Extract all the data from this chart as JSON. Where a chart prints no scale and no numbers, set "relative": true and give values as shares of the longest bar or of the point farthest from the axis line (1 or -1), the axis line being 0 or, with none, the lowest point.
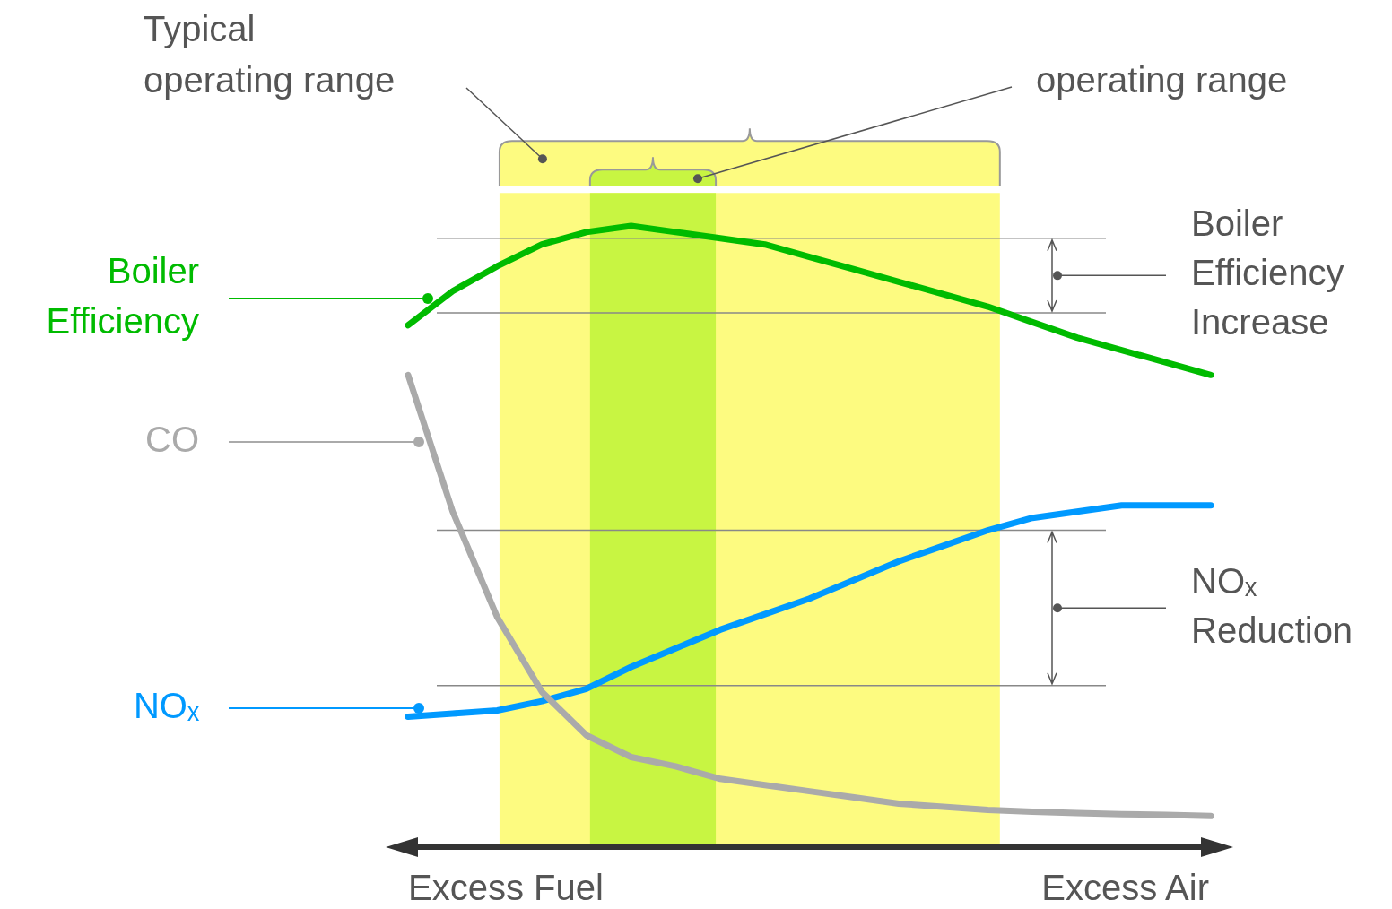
{
  "chart_data": {
    "type": "line",
    "relative": true,
    "categories": [
      null,
      null,
      null,
      null,
      null,
      null,
      null,
      null,
      null,
      null,
      null,
      null,
      null,
      null,
      null,
      null,
      null,
      null,
      null
    ],
    "tick_labels": false,
    "legend": false,
    "marker": "none",
    "line_style": "solid",
    "series": [
      {
        "name": "Boiler Efficiency",
        "color": "#00bb00",
        "values": [
          0.84,
          0.895,
          0.935,
          0.97,
          0.99,
          1,
          0.99,
          0.98,
          0.97,
          0.95,
          0.93,
          0.91,
          0.89,
          0.87,
          0.845,
          0.82,
          0.8,
          0.78,
          0.76
        ]
      },
      {
        "name": "CO",
        "color": "#aaaaaa",
        "values": [
          0.76,
          0.54,
          0.37,
          0.25,
          0.18,
          0.145,
          0.13,
          0.11,
          0.1,
          0.09,
          0.08,
          0.07,
          0.065,
          0.06,
          0.057,
          0.055,
          0.053,
          0.052,
          0.05
        ]
      },
      {
        "name": "NOₓ",
        "color": "#0099ff",
        "values": [
          0.21,
          0.215,
          0.22,
          0.235,
          0.255,
          0.29,
          0.32,
          0.35,
          0.375,
          0.4,
          0.43,
          0.46,
          0.485,
          0.51,
          0.53,
          0.54,
          0.55,
          0.55,
          0.55
        ]
      }
    ],
    "ref_lines": [
      {
        "axis": "y",
        "value": 0.98,
        "color": "#888888"
      },
      {
        "axis": "y",
        "value": 0.86,
        "color": "#888888"
      },
      {
        "axis": "y",
        "value": 0.51,
        "color": "#888888"
      },
      {
        "axis": "y",
        "value": 0.26,
        "color": "#888888"
      }
    ],
    "annotations": [
      "Typical operating range",
      "operating range",
      "Boiler Efficiency Increase",
      "NOₓ Reduction",
      "Excess Fuel",
      "Excess Air"
    ]
  }
}
